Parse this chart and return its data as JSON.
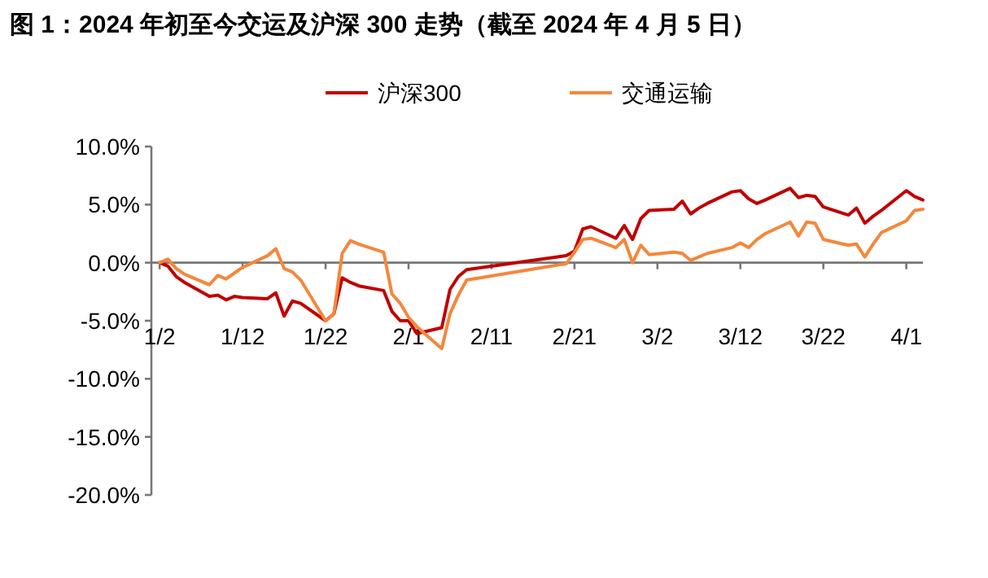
{
  "chart_data": {
    "type": "line",
    "title": "图 1：2024 年初至今交运及沪深 300 走势（截至 2024 年 4 月 5 日）",
    "x": [
      "--01-02",
      "--01-03",
      "--01-04",
      "--01-05",
      "--01-08",
      "--01-09",
      "--01-10",
      "--01-11",
      "--01-12",
      "--01-15",
      "--01-16",
      "--01-17",
      "--01-18",
      "--01-19",
      "--01-22",
      "--01-23",
      "--01-24",
      "--01-25",
      "--01-26",
      "--01-29",
      "--01-30",
      "--01-31",
      "--02-01",
      "--02-02",
      "--02-05",
      "--02-06",
      "--02-07",
      "--02-08",
      "--02-19",
      "--02-20",
      "--02-21",
      "--02-22",
      "--02-23",
      "--02-26",
      "--02-27",
      "--02-28",
      "--02-29",
      "--03-01",
      "--03-04",
      "--03-05",
      "--03-06",
      "--03-07",
      "--03-08",
      "--03-11",
      "--03-12",
      "--03-13",
      "--03-14",
      "--03-15",
      "--03-18",
      "--03-19",
      "--03-20",
      "--03-21",
      "--03-22",
      "--03-25",
      "--03-26",
      "--03-27",
      "--03-28",
      "--03-29",
      "--04-01",
      "--04-02",
      "--04-03"
    ],
    "series": [
      {
        "name": "沪深300",
        "color": "#c00000",
        "values": [
          0,
          -0.3,
          -1.2,
          -1.7,
          -2.9,
          -2.8,
          -3.2,
          -2.9,
          -3.0,
          -3.1,
          -2.6,
          -4.6,
          -3.3,
          -3.5,
          -5.0,
          -4.4,
          -1.3,
          -1.7,
          -2.0,
          -2.4,
          -4.2,
          -5.0,
          -5.0,
          -6.1,
          -5.6,
          -2.3,
          -1.2,
          -0.6,
          0.5,
          0.6,
          1.0,
          2.9,
          3.1,
          2.1,
          3.2,
          2.0,
          3.8,
          4.5,
          4.6,
          5.3,
          4.2,
          4.7,
          5.1,
          6.1,
          6.2,
          5.5,
          5.1,
          5.4,
          6.4,
          5.6,
          5.8,
          5.7,
          4.8,
          4.1,
          4.7,
          3.4,
          4.0,
          4.5,
          6.2,
          5.7,
          5.4
        ]
      },
      {
        "name": "交通运输",
        "color": "#f4873c",
        "values": [
          0,
          0.3,
          -0.5,
          -1.0,
          -1.9,
          -1.1,
          -1.4,
          -0.9,
          -0.4,
          0.6,
          1.2,
          -0.5,
          -0.8,
          -1.5,
          -5.0,
          -4.4,
          0.8,
          1.9,
          1.6,
          0.9,
          -2.7,
          -3.5,
          -4.7,
          -5.5,
          -7.4,
          -4.4,
          -2.8,
          -1.5,
          -0.2,
          -0.1,
          0.9,
          2.0,
          2.1,
          1.3,
          2.0,
          0.0,
          1.5,
          0.7,
          0.9,
          0.8,
          0.2,
          0.5,
          0.8,
          1.3,
          1.7,
          1.3,
          2.0,
          2.5,
          3.5,
          2.3,
          3.5,
          3.4,
          2.0,
          1.5,
          1.6,
          0.5,
          1.6,
          2.6,
          3.6,
          4.5,
          4.6
        ]
      }
    ],
    "xlim": [
      "--01-01",
      "--04-03"
    ],
    "xticks": [
      {
        "value": "--01-02",
        "label": "1/2"
      },
      {
        "value": "--01-12",
        "label": "1/12"
      },
      {
        "value": "--01-22",
        "label": "1/22"
      },
      {
        "value": "--02-01",
        "label": "2/1"
      },
      {
        "value": "--02-11",
        "label": "2/11"
      },
      {
        "value": "--02-21",
        "label": "2/21"
      },
      {
        "value": "--03-02",
        "label": "3/2"
      },
      {
        "value": "--03-12",
        "label": "3/12"
      },
      {
        "value": "--03-22",
        "label": "3/22"
      },
      {
        "value": "--04-01",
        "label": "4/1"
      }
    ],
    "ylim": [
      -20,
      10
    ],
    "yticks": [
      {
        "value": -20,
        "label": "-20.0%"
      },
      {
        "value": -15,
        "label": "-15.0%"
      },
      {
        "value": -10,
        "label": "-10.0%"
      },
      {
        "value": -5,
        "label": "-5.0%"
      },
      {
        "value": 0,
        "label": "0.0%"
      },
      {
        "value": 5,
        "label": "5.0%"
      },
      {
        "value": 10,
        "label": "10.0%"
      }
    ],
    "legend": "top"
  }
}
